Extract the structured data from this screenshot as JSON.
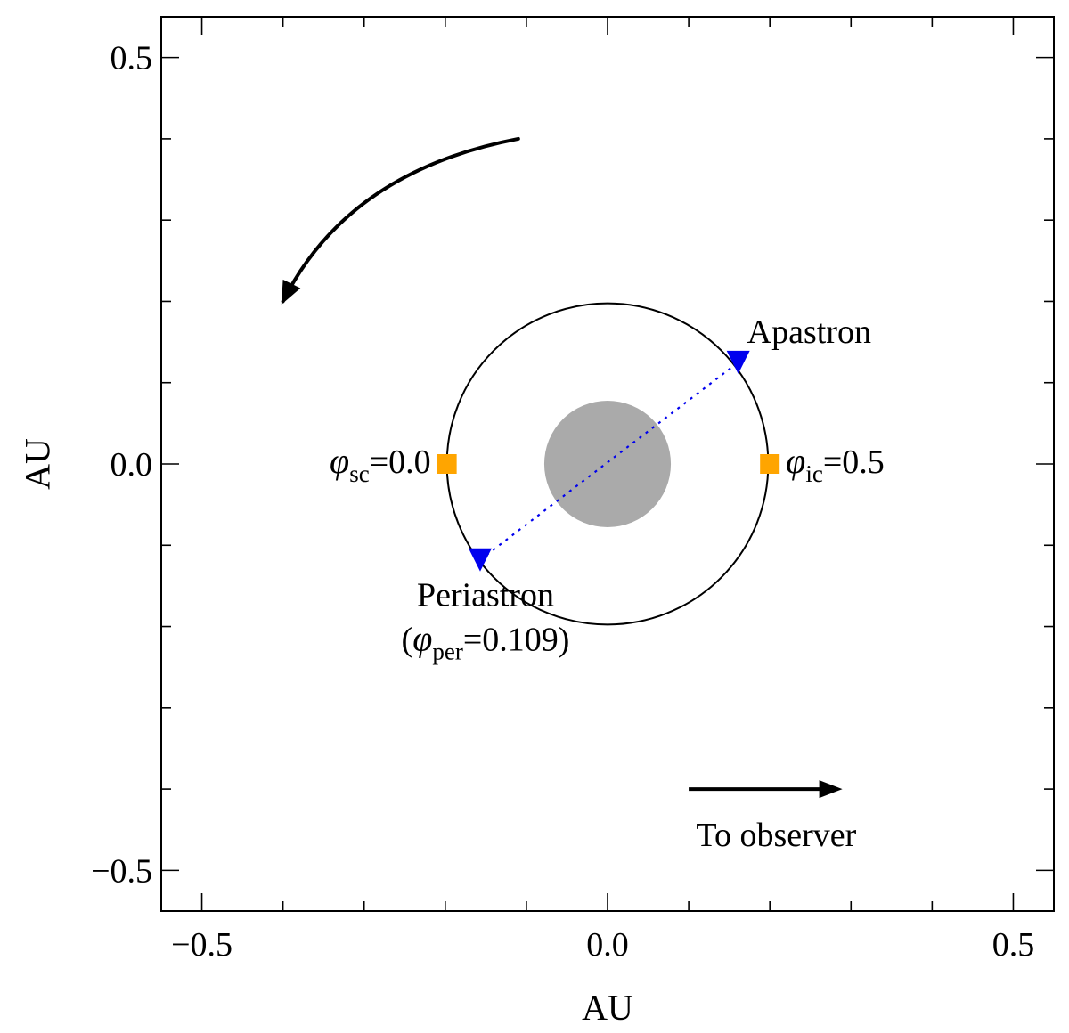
{
  "chart_data": {
    "type": "scatter",
    "title": "",
    "xlabel": "AU",
    "ylabel": "AU",
    "xlim": [
      -0.55,
      0.55
    ],
    "ylim": [
      -0.55,
      0.55
    ],
    "x_ticks": [
      -0.5,
      0.0,
      0.5
    ],
    "y_ticks": [
      -0.5,
      0.0,
      0.5
    ],
    "x_tick_labels": [
      "−0.5",
      "0.0",
      "0.5"
    ],
    "y_tick_labels": [
      "−0.5",
      "0.0",
      "0.5"
    ],
    "minor_tick_step": 0.1,
    "grid": false,
    "legend": "none",
    "orbit": {
      "center": [
        0.0,
        0.0
      ],
      "radius": 0.198,
      "color": "#000000"
    },
    "star": {
      "center": [
        0.0,
        0.0
      ],
      "radius": 0.078,
      "color": "#aaaaaa"
    },
    "apsidal_line": {
      "from": [
        -0.157,
        -0.118
      ],
      "to": [
        0.161,
        0.125
      ],
      "color": "#0000ee",
      "style": "dotted"
    },
    "series": [
      {
        "marker": "square",
        "color": "#ffa500",
        "points": [
          {
            "x": -0.198,
            "y": 0.0,
            "symbol": "φ",
            "sub": "sc",
            "suffix": "=0.0"
          },
          {
            "x": 0.2,
            "y": 0.0,
            "symbol": "φ",
            "sub": "ic",
            "suffix": "=0.5"
          }
        ]
      },
      {
        "marker": "triangle-down",
        "color": "#0000ee",
        "points": [
          {
            "x": 0.161,
            "y": 0.125,
            "label": "Apastron"
          },
          {
            "x": -0.157,
            "y": -0.118,
            "label": "Periastron",
            "line2_open": "(",
            "symbol": "φ",
            "sub": "per",
            "suffix": "=0.109)"
          }
        ]
      }
    ],
    "rotation_arrow": {
      "from": [
        -0.11,
        0.4
      ],
      "via": [
        -0.32,
        0.36
      ],
      "to": [
        -0.4,
        0.2
      ]
    },
    "observer_arrow": {
      "from": [
        0.1,
        -0.4
      ],
      "to": [
        0.285,
        -0.4
      ],
      "label": "To observer"
    }
  }
}
